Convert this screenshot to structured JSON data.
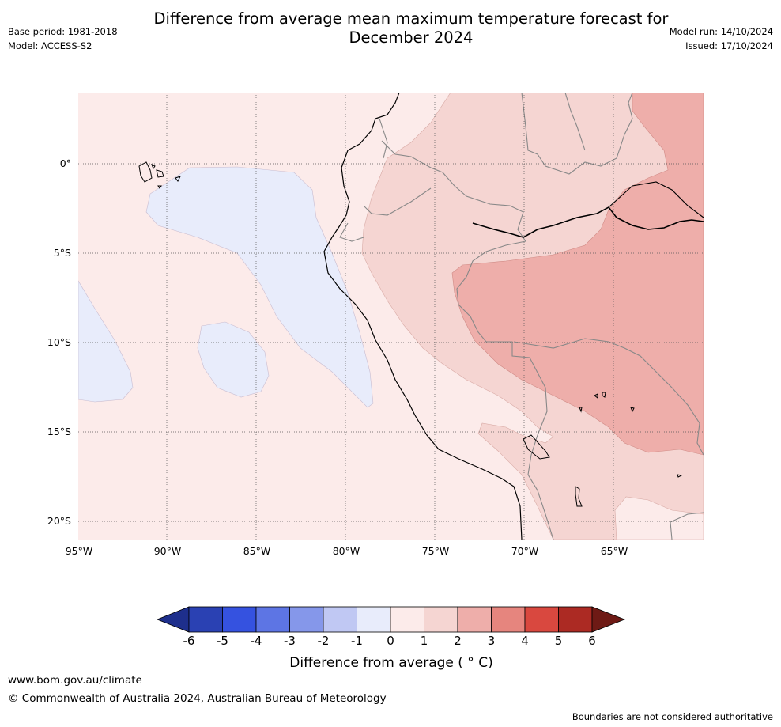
{
  "title_line1": "Difference from average mean maximum temperature forecast for",
  "title_line2": "December 2024",
  "meta_left": {
    "base_period": "Base period: 1981-2018",
    "model": "Model: ACCESS-S2"
  },
  "meta_right": {
    "model_run": "Model run: 14/10/2024",
    "issued": "Issued: 17/10/2024"
  },
  "map": {
    "lat_labels": [
      "0°",
      "5°S",
      "10°S",
      "15°S",
      "20°S"
    ],
    "lon_labels": [
      "95°W",
      "90°W",
      "85°W",
      "80°W",
      "75°W",
      "70°W",
      "65°W"
    ]
  },
  "colorbar": {
    "ticks": [
      "-6",
      "-5",
      "-4",
      "-3",
      "-2",
      "-1",
      "0",
      "1",
      "2",
      "3",
      "4",
      "5",
      "6"
    ],
    "colors": [
      "#1e2f8c",
      "#2a41b3",
      "#3552e0",
      "#5d75e4",
      "#8597ea",
      "#c0c8f3",
      "#e8ecfb",
      "#fcebea",
      "#f5d5d2",
      "#eeaeaa",
      "#e6857e",
      "#d9483f",
      "#ac2a23",
      "#6e1a15"
    ],
    "label": "Difference from average ( ° C)"
  },
  "footer": {
    "url": "www.bom.gov.au/climate",
    "copyright": "© Commonwealth of Australia 2024, Australian Bureau of Meteorology",
    "note": "Boundaries are not considered authoritative"
  }
}
